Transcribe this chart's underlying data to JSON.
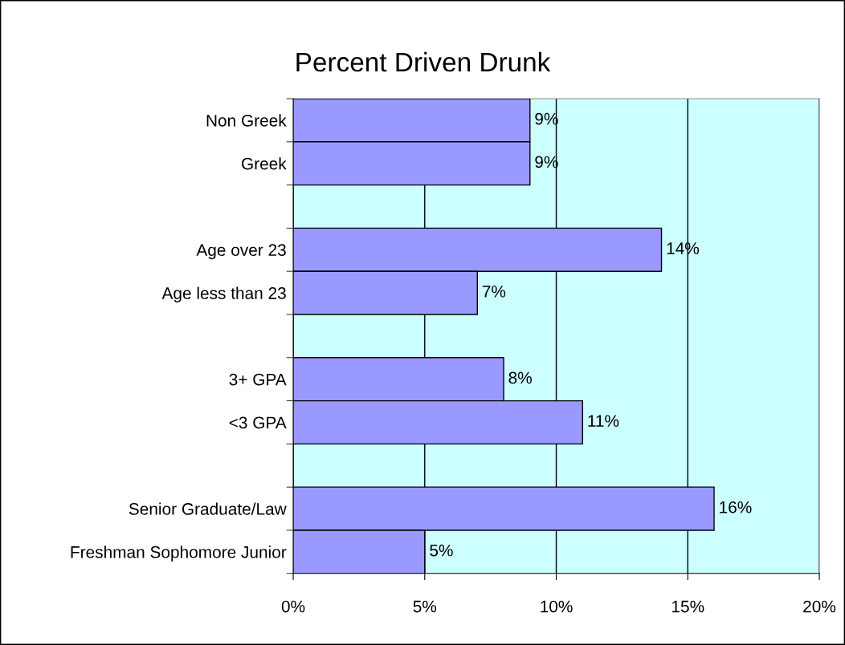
{
  "chart_data": {
    "type": "bar",
    "orientation": "horizontal",
    "title": "Percent Driven Drunk",
    "categories": [
      "Non Greek",
      "Greek",
      null,
      "Age over 23",
      "Age less than 23",
      null,
      "3+ GPA",
      "<3 GPA",
      null,
      "Senior Graduate/Law",
      "Freshman Sophomore Junior"
    ],
    "values": [
      9,
      9,
      null,
      14,
      7,
      null,
      8,
      11,
      null,
      16,
      5
    ],
    "value_labels": [
      "9%",
      "9%",
      null,
      "14%",
      "7%",
      null,
      "8%",
      "11%",
      null,
      "16%",
      "5%"
    ],
    "color": "#9999ff",
    "xlim": [
      0,
      20
    ],
    "xticks": [
      {
        "value": 0,
        "label": "0%"
      },
      {
        "value": 5,
        "label": "5%"
      },
      {
        "value": 10,
        "label": "10%"
      },
      {
        "value": 15,
        "label": "15%"
      },
      {
        "value": 20,
        "label": "20%"
      }
    ],
    "grid": "x",
    "legend": false
  }
}
